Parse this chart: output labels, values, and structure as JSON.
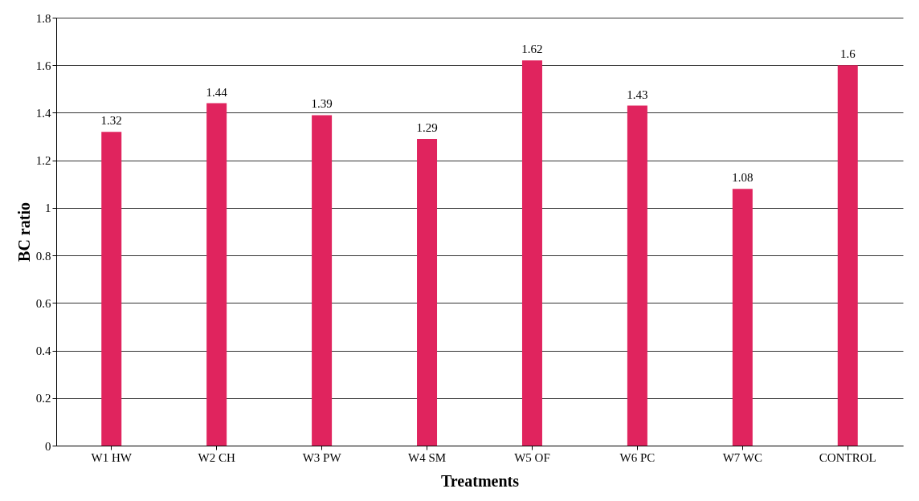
{
  "chart_data": {
    "type": "bar",
    "xlabel": "Treatments",
    "ylabel": "BC ratio",
    "categories": [
      "W1 HW",
      "W2 CH",
      "W3 PW",
      "W4 SM",
      "W5 OF",
      "W6 PC",
      "W7 WC",
      "CONTROL"
    ],
    "values": [
      1.32,
      1.44,
      1.39,
      1.29,
      1.62,
      1.43,
      1.08,
      1.6
    ],
    "color": "#e0245e",
    "ylim": [
      0,
      1.8
    ],
    "yticks": [
      0,
      0.2,
      0.4,
      0.6,
      0.8,
      1,
      1.2,
      1.4,
      1.6,
      1.8
    ],
    "grid": "y",
    "data_labels": true
  }
}
